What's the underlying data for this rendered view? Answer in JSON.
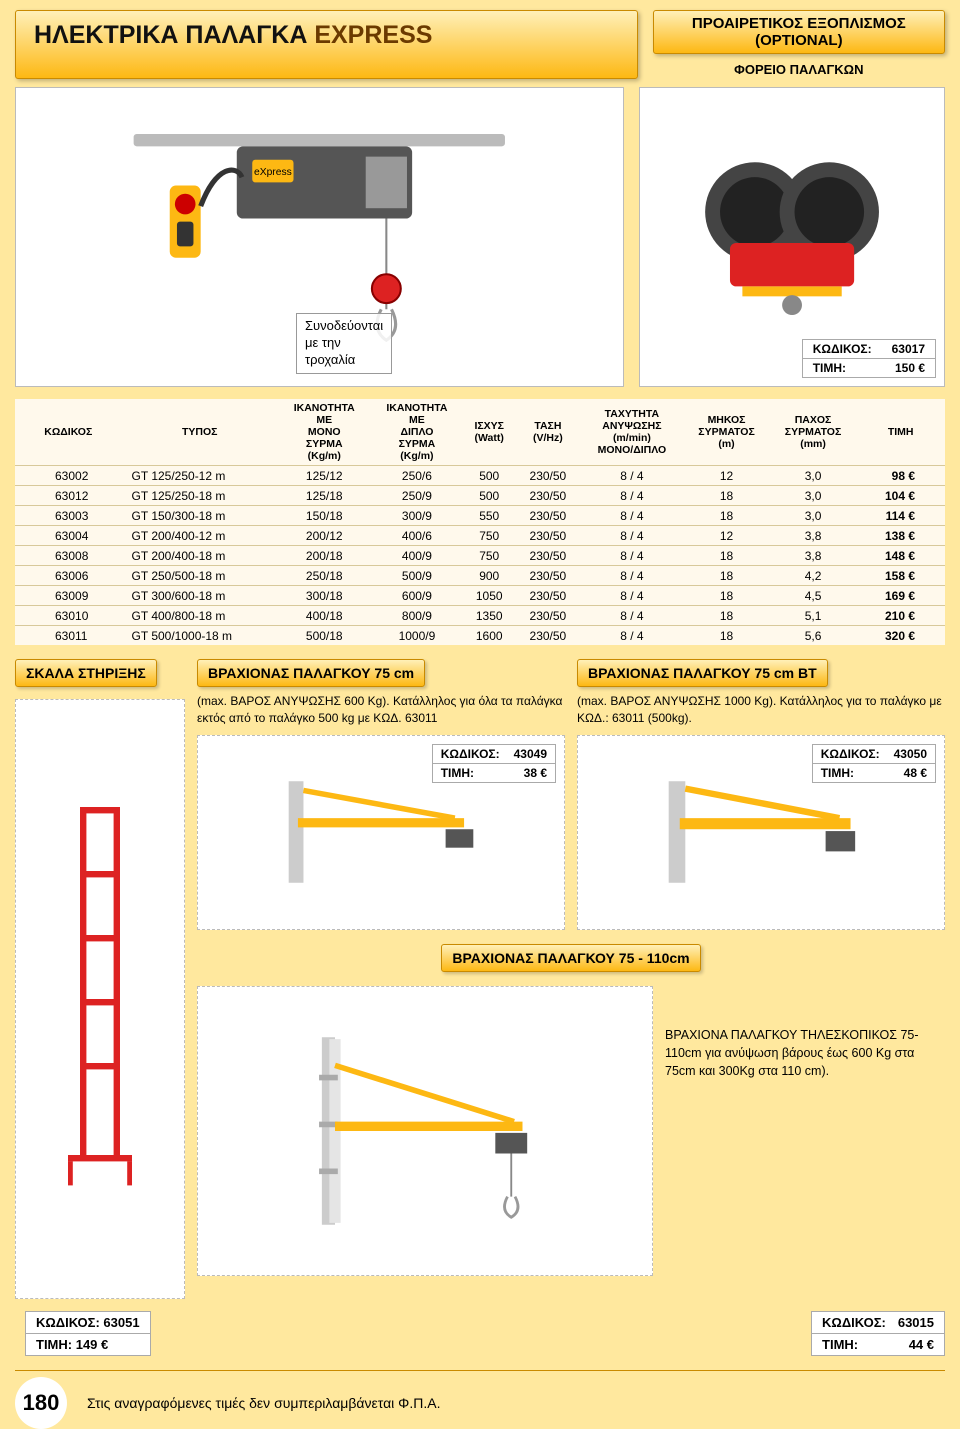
{
  "header": {
    "title_a": "ΗΛΕΚΤΡΙΚΑ ΠΑΛΑΓΚΑ ",
    "title_b": "EXPRESS",
    "optional_l1": "ΠΡΟΑΙΡΕΤΙΚΟΣ ΕΞΟΠΛΙΣΜΟΣ",
    "optional_l2": "(OPTIONAL)",
    "sub": "ΦΟΡΕΙΟ ΠΑΛΑΓΚΩΝ"
  },
  "main_caption": {
    "l1": "Συνοδεύονται",
    "l2": "με την",
    "l3": "τροχαλία"
  },
  "trolley_price": {
    "code_l": "ΚΩΔΙΚΟΣ:",
    "code_v": "63017",
    "price_l": "ΤΙΜΗ:",
    "price_v": "150 €"
  },
  "table": {
    "headers": [
      "ΚΩΔΙΚΟΣ",
      "ΤΥΠΟΣ",
      "ΙΚΑΝΟΤΗΤΑ ΜΕ ΜΟΝΟ ΣΥΡΜΑ (Kg/m)",
      "ΙΚΑΝΟΤΗΤΑ ΜΕ ΔΙΠΛΟ ΣΥΡΜΑ (Kg/m)",
      "ΙΣΧΥΣ (Watt)",
      "ΤΑΣΗ (V/Hz)",
      "ΤΑΧΥΤΗΤΑ ΑΝΥΨΩΣΗΣ (m/min) ΜΟΝΟ/ΔΙΠΛΟ",
      "ΜΗΚΟΣ ΣΥΡΜΑΤΟΣ (m)",
      "ΠΑΧΟΣ ΣΥΡΜΑΤΟΣ (mm)",
      "ΤΙΜΗ"
    ],
    "rows": [
      [
        "63002",
        "GT 125/250-12 m",
        "125/12",
        "250/6",
        "500",
        "230/50",
        "8 / 4",
        "12",
        "3,0",
        "98 €"
      ],
      [
        "63012",
        "GT 125/250-18 m",
        "125/18",
        "250/9",
        "500",
        "230/50",
        "8 / 4",
        "18",
        "3,0",
        "104 €"
      ],
      [
        "63003",
        "GT 150/300-18 m",
        "150/18",
        "300/9",
        "550",
        "230/50",
        "8 / 4",
        "18",
        "3,0",
        "114 €"
      ],
      [
        "63004",
        "GT 200/400-12 m",
        "200/12",
        "400/6",
        "750",
        "230/50",
        "8 / 4",
        "12",
        "3,8",
        "138 €"
      ],
      [
        "63008",
        "GT 200/400-18 m",
        "200/18",
        "400/9",
        "750",
        "230/50",
        "8 / 4",
        "18",
        "3,8",
        "148 €"
      ],
      [
        "63006",
        "GT 250/500-18 m",
        "250/18",
        "500/9",
        "900",
        "230/50",
        "8 / 4",
        "18",
        "4,2",
        "158 €"
      ],
      [
        "63009",
        "GT 300/600-18 m",
        "300/18",
        "600/9",
        "1050",
        "230/50",
        "8 / 4",
        "18",
        "4,5",
        "169 €"
      ],
      [
        "63010",
        "GT 400/800-18 m",
        "400/18",
        "800/9",
        "1350",
        "230/50",
        "8 / 4",
        "18",
        "5,1",
        "210 €"
      ],
      [
        "63011",
        "GT 500/1000-18 m",
        "500/18",
        "1000/9",
        "1600",
        "230/50",
        "8 / 4",
        "18",
        "5,6",
        "320 €"
      ]
    ]
  },
  "ladder": {
    "title": "ΣΚΑΛΑ ΣΤΗΡΙΞΗΣ",
    "code": "ΚΩΔΙΚΟΣ: 63051",
    "price": "ΤΙΜΗ:        149 €"
  },
  "arm1": {
    "title": "ΒΡΑΧΙΟΝΑΣ ΠΑΛΑΓΚΟΥ 75 cm",
    "desc": "(max. ΒΑΡΟΣ ΑΝΥΨΩΣΗΣ 600 Kg). Κατάλληλος για όλα τα παλάγκα εκτός από το παλάγκο 500 kg με ΚΩΔ. 63011",
    "code_l": "ΚΩΔΙΚΟΣ:",
    "code_v": "43049",
    "price_l": "ΤΙΜΗ:",
    "price_v": "38 €"
  },
  "arm2": {
    "title": "ΒΡΑΧΙΟΝΑΣ ΠΑΛΑΓΚΟΥ 75 cm BT",
    "desc": "(max. ΒΑΡΟΣ ΑΝΥΨΩΣΗΣ 1000 Kg). Κατάλληλος για το παλάγκο με ΚΩΔ.: 63011 (500kg).",
    "code_l": "ΚΩΔΙΚΟΣ:",
    "code_v": "43050",
    "price_l": "ΤΙΜΗ:",
    "price_v": "48 €"
  },
  "arm3": {
    "title": "ΒΡΑΧΙΟΝΑΣ ΠΑΛΑΓΚΟΥ 75 - 110cm",
    "desc": "ΒΡΑΧΙΟΝΑ ΠΑΛΑΓΚΟΥ ΤΗΛΕΣΚΟΠΙΚΟΣ 75-110cm για ανύψωση βάρους έως 600 Kg στα 75cm και 300Kg στα 110 cm).",
    "code_l": "ΚΩΔΙΚΟΣ:",
    "code_v": "63015",
    "price_l": "ΤΙΜΗ:",
    "price_v": "44 €"
  },
  "page_number": "180",
  "footer_note": "Στις αναγραφόμενες τιμές δεν συμπεριλαμβάνεται Φ.Π.Α."
}
